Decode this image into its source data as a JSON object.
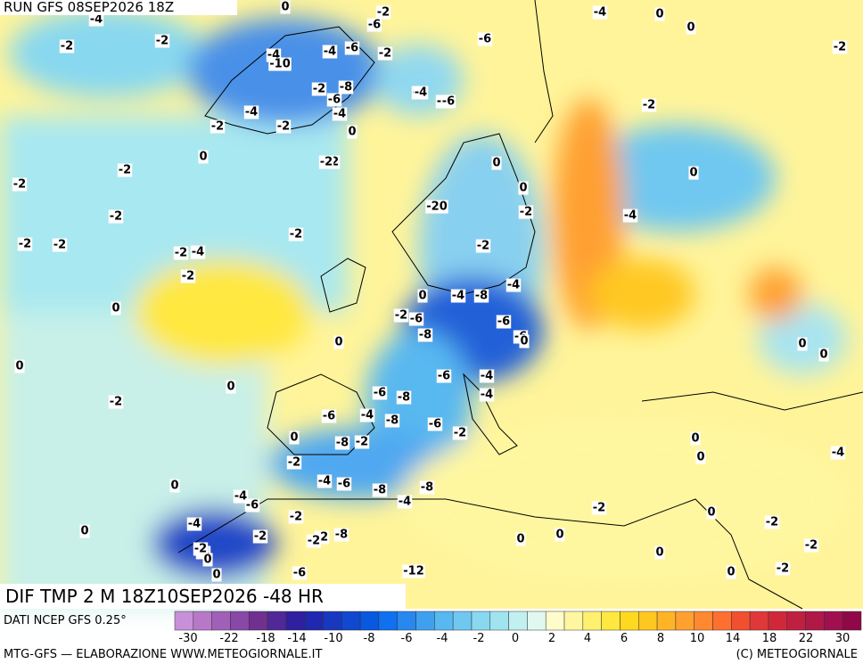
{
  "header": {
    "run": "RUN GFS 08SEP2026 18Z"
  },
  "map": {
    "field_label": "DIF TMP 2 M 18Z10SEP2026 -48 HR",
    "labels": [
      "-4",
      "0",
      "-2",
      "-2",
      "-4",
      "-2",
      "-6",
      "-4",
      "-6",
      "-10",
      "-4",
      "-2",
      "-2",
      "0",
      "-2",
      "-8",
      "-6",
      "-4",
      "-4",
      "-2",
      "0",
      "-2",
      "-4",
      "-2",
      "-2",
      "0",
      "0",
      "-2",
      "-6",
      "-4",
      "-6",
      "-2",
      "-2",
      "-2",
      "-2",
      "-20",
      "-2",
      "0",
      "-2",
      "-4",
      "-2",
      "-4",
      "-2",
      "-2",
      "-2",
      "-2",
      "0",
      "0",
      "-4",
      "-8",
      "-4",
      "-2",
      "-6",
      "-6",
      "-8",
      "-6",
      "0",
      "0",
      "-8",
      "-6",
      "-4",
      "-6",
      "-6",
      "-4",
      "-4",
      "-8",
      "-6",
      "-2",
      "-2",
      "0",
      "0",
      "0",
      "-2",
      "-8",
      "-2",
      "-4",
      "-6",
      "-8",
      "-8",
      "-4",
      "-2",
      "-4",
      "-6",
      "-2",
      "-4",
      "-2",
      "-2",
      "-8",
      "-4",
      "0",
      "0",
      "0",
      "0",
      "0",
      "-2",
      "0",
      "0",
      "0",
      "0",
      "0",
      "-2",
      "-2",
      "0",
      "0",
      "-2",
      "-12",
      "-6",
      "-4",
      "-2",
      "0",
      "0",
      "0"
    ]
  },
  "colorbar": {
    "source": "DATI NCEP GFS 0.25°",
    "colors": [
      "#c890d8",
      "#b878c8",
      "#a060b8",
      "#8848a8",
      "#703090",
      "#502898",
      "#3020a0",
      "#2028b0",
      "#1838c0",
      "#1048d0",
      "#0858e0",
      "#1070f0",
      "#2888f0",
      "#40a0f0",
      "#58b8f0",
      "#70c8f0",
      "#88d8f0",
      "#a0e4f0",
      "#c0f0f0",
      "#e0f8f0",
      "#fffccc",
      "#fff7a0",
      "#fff070",
      "#ffe840",
      "#ffd820",
      "#ffc820",
      "#ffb428",
      "#ffa030",
      "#ff8830",
      "#ff7030",
      "#f05030",
      "#e03838",
      "#d02838",
      "#c02040",
      "#b01848",
      "#a01050",
      "#900848"
    ],
    "ticks": [
      -30,
      -22,
      -18,
      -14,
      -10,
      -8,
      -6,
      -4,
      -2,
      0,
      2,
      4,
      6,
      8,
      10,
      14,
      18,
      22,
      30
    ]
  },
  "footer": {
    "left": "MTG-GFS — ELABORAZIONE WWW.METEOGIORNALE.IT",
    "right": "(C) METEOGIORNALE"
  }
}
